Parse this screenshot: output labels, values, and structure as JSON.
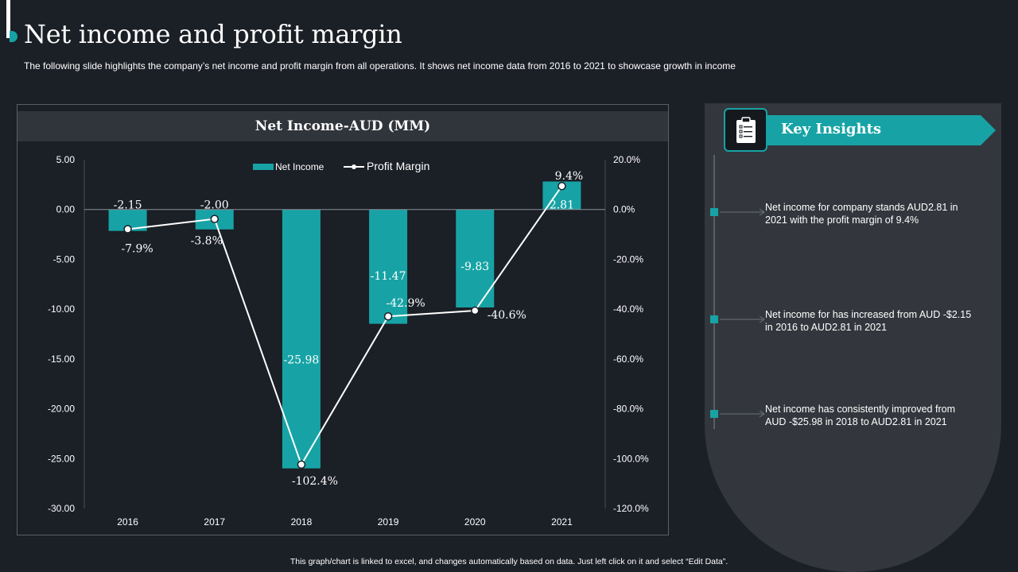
{
  "page": {
    "title": "Net income and profit margin",
    "subtitle": "The following slide highlights the company’s net income and profit margin from all operations. It shows net income data from 2016 to 2021 to showcase growth in income",
    "footnote": "This graph/chart is linked to excel, and changes automatically based on data. Just left click on it and select “Edit Data”."
  },
  "chart_data": {
    "type": "bar",
    "title": "Net Income-AUD (MM)",
    "categories": [
      "2016",
      "2017",
      "2018",
      "2019",
      "2020",
      "2021"
    ],
    "series": [
      {
        "name": "Net Income",
        "kind": "bar",
        "axis": "left",
        "values": [
          -2.15,
          -2.0,
          -25.98,
          -11.47,
          -9.83,
          2.81
        ],
        "labels": [
          "-2.15",
          "-2.00",
          "-25.98",
          "-11.47",
          "-9.83",
          "2.81"
        ]
      },
      {
        "name": "Profit Margin",
        "kind": "line",
        "axis": "right",
        "values": [
          -7.9,
          -3.8,
          -102.4,
          -42.9,
          -40.6,
          9.4
        ],
        "labels": [
          "-7.9%",
          "-3.8%",
          "-102.4%",
          "-42.9%",
          "-40.6%",
          "9.4%"
        ]
      }
    ],
    "y_left": {
      "min": -30,
      "max": 5,
      "ticks": [
        "5.00",
        "0.00",
        "-5.00",
        "-10.00",
        "-15.00",
        "-20.00",
        "-25.00",
        "-30.00"
      ]
    },
    "y_right": {
      "min": -120,
      "max": 20,
      "ticks": [
        "20.0%",
        "0.0%",
        "-20.0%",
        "-40.0%",
        "-60.0%",
        "-80.0%",
        "-100.0%",
        "-120.0%"
      ]
    },
    "legend": {
      "position": "top-center",
      "entries": [
        "Net Income",
        "Profit Margin"
      ]
    },
    "grid": false
  },
  "insights": {
    "title": "Key Insights",
    "icon": "clipboard-checklist-icon",
    "items": [
      {
        "text": "Net income for company stands AUD2.81 in 2021 with the profit margin of 9.4%"
      },
      {
        "text": "Net income for has increased from AUD -$2.15 in 2016 to AUD2.81 in 2021"
      },
      {
        "text": "Net income has consistently improved from AUD -$25.98 in 2018 to AUD2.81 in 2021"
      }
    ]
  },
  "colors": {
    "background": "#1b1f26",
    "accent": "#17a3a5",
    "panel": "#33373d",
    "header": "#30353c",
    "text": "#ffffff"
  }
}
